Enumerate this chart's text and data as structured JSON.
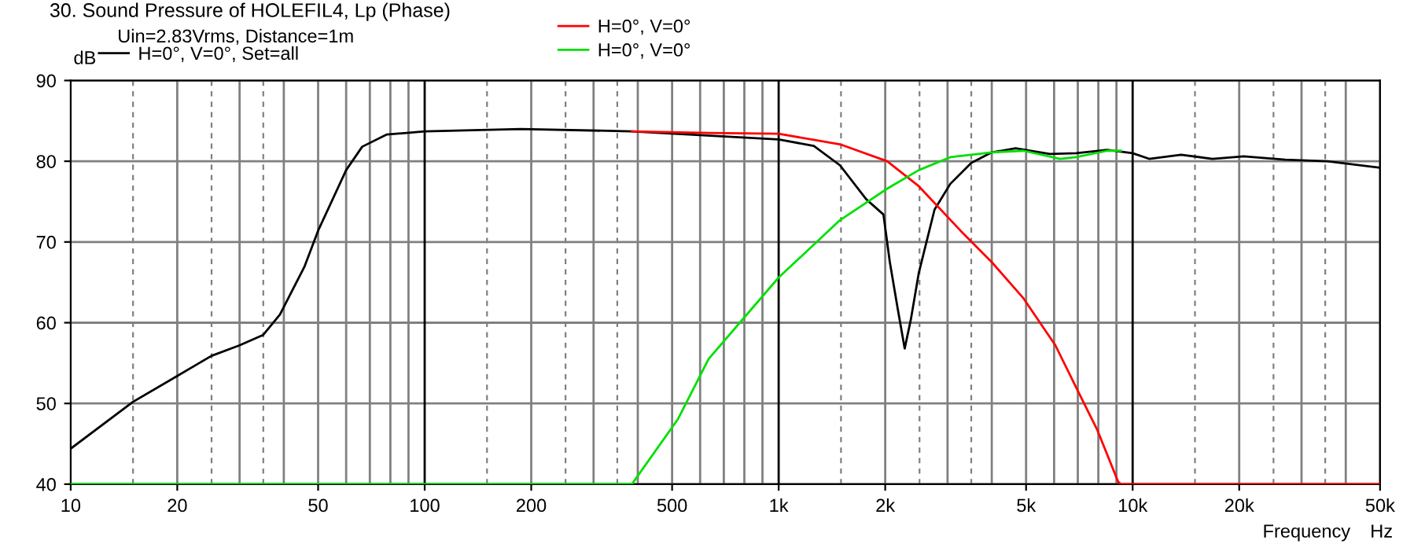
{
  "chart_data": {
    "type": "line",
    "title": "30. Sound Pressure of HOLEFIL4, Lp (Phase)",
    "xlabel": "Frequency",
    "ylabel": "dB",
    "annotations": [
      "Uin=2.83Vrms, Distance=1m",
      "Hz"
    ],
    "log": "x",
    "grid": true,
    "legend": "top left",
    "line_style": "solid",
    "marker": "none",
    "xlim": [
      10,
      50000
    ],
    "ylim": [
      40,
      90
    ],
    "xticks": [
      10,
      20,
      50,
      100,
      200,
      500,
      {
        "value": 1000,
        "label": "1k"
      },
      {
        "value": 2000,
        "label": "2k"
      },
      {
        "value": 5000,
        "label": "5k"
      },
      {
        "value": 10000,
        "label": "10k"
      },
      {
        "value": 20000,
        "label": "20k"
      },
      {
        "value": 50000,
        "label": "50k"
      }
    ],
    "yticks": [
      40,
      50,
      60,
      70,
      80,
      90
    ],
    "series": [
      {
        "name": "H=0°, V=0°, Set=all",
        "color": "#000000",
        "x": [
          10,
          15,
          20,
          25,
          30,
          35,
          39,
          45.7,
          50,
          60,
          66.6,
          78,
          100,
          187,
          385,
          1000,
          1257,
          1490,
          1767,
          1977,
          2061,
          2170,
          2270,
          2363,
          2489,
          2756,
          3054,
          3500,
          4000,
          4670,
          5840,
          6920,
          8480,
          10000,
          11130,
          13700,
          16800,
          20600,
          27000,
          35500,
          50000
        ],
        "values": [
          44.4,
          50.2,
          53.4,
          55.9,
          57.2,
          58.5,
          61.0,
          66.9,
          71.4,
          78.9,
          81.8,
          83.3,
          83.7,
          84.0,
          83.7,
          82.7,
          81.9,
          79.5,
          75.3,
          73.4,
          67.5,
          61.7,
          56.8,
          60.4,
          66.2,
          74.0,
          77.2,
          79.8,
          81.1,
          81.6,
          80.9,
          81.0,
          81.4,
          81.0,
          80.3,
          80.8,
          80.3,
          80.6,
          80.2,
          80.0,
          79.2
        ]
      },
      {
        "name": "H=0°, V=0°",
        "color": "#ff0000",
        "x": [
          385,
          635,
          1000,
          1490,
          2026,
          2489,
          3264,
          4000,
          4920,
          6050,
          6920,
          7930,
          9100,
          9260,
          50000
        ],
        "values": [
          83.7,
          83.5,
          83.4,
          82.1,
          80.0,
          76.9,
          71.4,
          67.5,
          63.0,
          57.2,
          52.0,
          46.8,
          40.3,
          40.0,
          40.0
        ]
      },
      {
        "name": "H=0°, V=0°",
        "color": "#00e000",
        "x": [
          10,
          385,
          520,
          634,
          1000,
          1490,
          2026,
          2489,
          3054,
          4000,
          4920,
          6240,
          6920,
          8480,
          9260
        ],
        "values": [
          40.0,
          40.0,
          48.1,
          55.5,
          65.6,
          72.7,
          76.6,
          78.9,
          80.5,
          81.1,
          81.3,
          80.3,
          80.5,
          81.3,
          81.3
        ]
      }
    ]
  }
}
